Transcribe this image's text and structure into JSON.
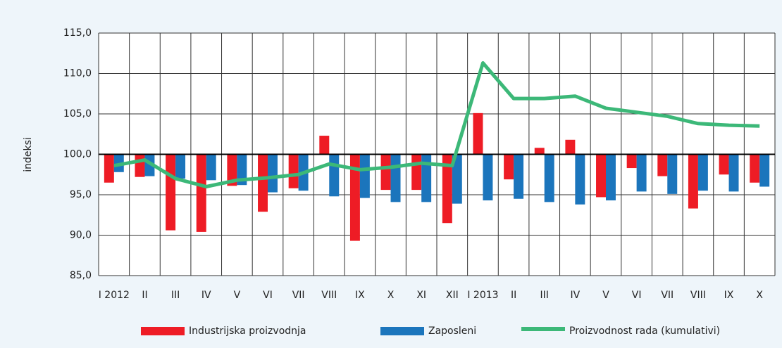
{
  "chart_data": {
    "type": "bar",
    "y_label": "indeksi",
    "categories": [
      "I 2012",
      "II",
      "III",
      "IV",
      "V",
      "VI",
      "VII",
      "VIII",
      "IX",
      "X",
      "XI",
      "XII",
      "I 2013",
      "II",
      "III",
      "IV",
      "V",
      "VI",
      "VII",
      "VIII",
      "IX",
      "X"
    ],
    "series": [
      {
        "name": "Industrijska proizvodnja",
        "color": "#ee1c25",
        "kind": "bar",
        "values": [
          96.5,
          97.2,
          90.6,
          90.4,
          96.1,
          92.9,
          95.8,
          102.3,
          89.3,
          95.6,
          95.6,
          91.5,
          105.1,
          96.9,
          100.8,
          101.8,
          94.7,
          98.3,
          97.3,
          93.3,
          97.5,
          96.5
        ]
      },
      {
        "name": "Zaposleni",
        "color": "#1b75bc",
        "kind": "bar",
        "values": [
          97.8,
          97.3,
          97.0,
          96.8,
          96.2,
          95.3,
          95.5,
          94.8,
          94.6,
          94.1,
          94.1,
          93.9,
          94.3,
          94.5,
          94.1,
          93.8,
          94.3,
          95.4,
          95.1,
          95.5,
          95.4,
          96.0
        ]
      },
      {
        "name": "Proizvodnost rada (kumulativi)",
        "color": "#3cb878",
        "kind": "line",
        "values": [
          98.6,
          99.3,
          97.0,
          96.0,
          96.8,
          97.1,
          97.5,
          98.8,
          98.1,
          98.4,
          98.9,
          98.6,
          111.3,
          106.9,
          106.9,
          107.2,
          105.7,
          105.2,
          104.7,
          103.8,
          103.6,
          103.5
        ]
      }
    ],
    "ylim": [
      85,
      115
    ],
    "yticks": [
      {
        "value": 85,
        "label": "85,0"
      },
      {
        "value": 90,
        "label": "90,0"
      },
      {
        "value": 95,
        "label": "95,0"
      },
      {
        "value": 100,
        "label": "100,0"
      },
      {
        "value": 105,
        "label": "105,0"
      },
      {
        "value": 110,
        "label": "110,0"
      },
      {
        "value": 115,
        "label": "115,0"
      }
    ],
    "grid": true
  }
}
